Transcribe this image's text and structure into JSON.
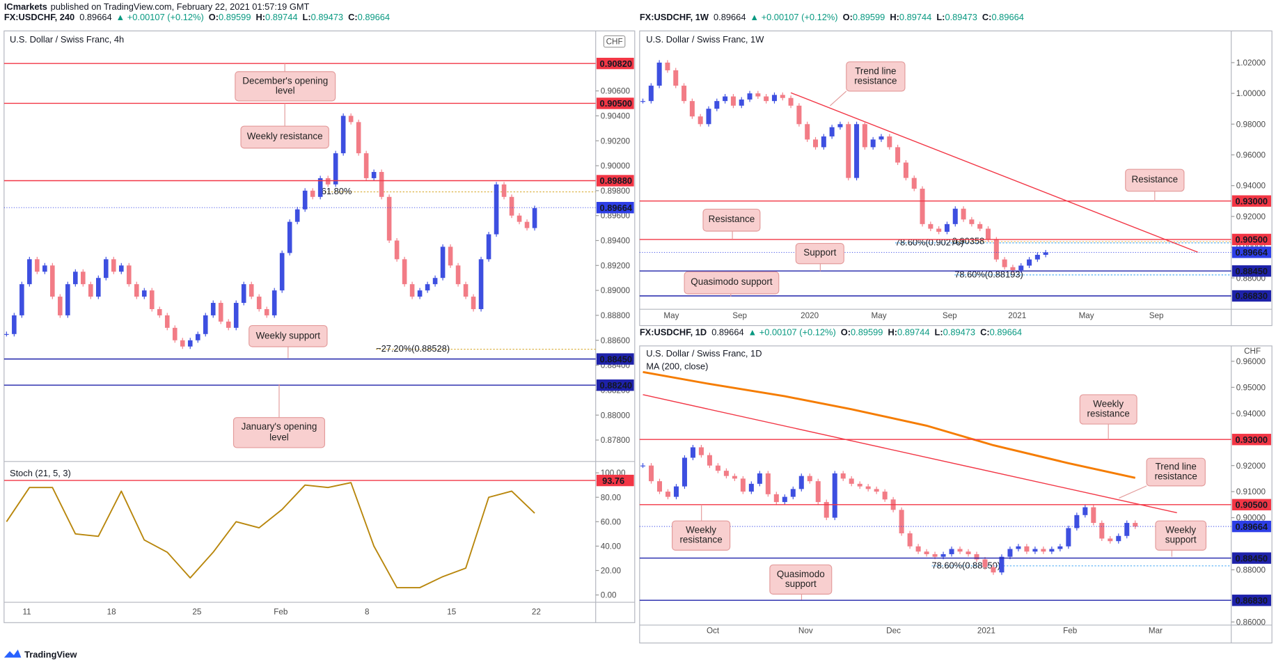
{
  "header": {
    "publisher": "ICmarkets",
    "text": "published on TradingView.com, February 22, 2021 01:57:19 GMT"
  },
  "panels": [
    {
      "symbol_line": {
        "symbol": "FX:USDCHF, 240",
        "last": "0.89664",
        "change": "▲ +0.00107 (+0.12%)",
        "ohlc": [
          {
            "key": "O:",
            "value": "0.89599"
          },
          {
            "key": "H:",
            "value": "0.89744"
          },
          {
            "key": "L:",
            "value": "0.89473"
          },
          {
            "key": "C:",
            "value": "0.89664"
          }
        ]
      },
      "title": "U.S. Dollar / Swiss Franc, 4h",
      "currency": "CHF",
      "ylim": [
        0.87628,
        0.91081
      ],
      "yticks": [
        {
          "value": 0.906,
          "label": "0.90600"
        },
        {
          "value": 0.904,
          "label": "0.90400"
        },
        {
          "value": 0.902,
          "label": "0.90200"
        },
        {
          "value": 0.9,
          "label": "0.90000"
        },
        {
          "value": 0.898,
          "label": "0.89800"
        },
        {
          "value": 0.896,
          "label": "0.89600"
        },
        {
          "value": 0.894,
          "label": "0.89400"
        },
        {
          "value": 0.892,
          "label": "0.89200"
        },
        {
          "value": 0.89,
          "label": "0.89000"
        },
        {
          "value": 0.888,
          "label": "0.88800"
        },
        {
          "value": 0.886,
          "label": "0.88600"
        },
        {
          "value": 0.884,
          "label": "0.88400"
        },
        {
          "value": 0.882,
          "label": "0.88200"
        },
        {
          "value": 0.88,
          "label": "0.88000"
        },
        {
          "value": 0.878,
          "label": "0.87800"
        }
      ],
      "time_labels": [
        "11",
        "18",
        "25",
        "Feb",
        "8",
        "15",
        "22"
      ],
      "candles": [
        0.8865,
        0.888,
        0.8905,
        0.8925,
        0.8915,
        0.892,
        0.8895,
        0.888,
        0.8905,
        0.8915,
        0.8905,
        0.8895,
        0.891,
        0.8925,
        0.8915,
        0.892,
        0.8905,
        0.8895,
        0.89,
        0.8885,
        0.888,
        0.887,
        0.886,
        0.8855,
        0.886,
        0.8865,
        0.888,
        0.889,
        0.8875,
        0.887,
        0.889,
        0.8905,
        0.8895,
        0.8885,
        0.888,
        0.89,
        0.893,
        0.8955,
        0.8965,
        0.898,
        0.8975,
        0.899,
        0.8985,
        0.901,
        0.904,
        0.9035,
        0.901,
        0.899,
        0.8995,
        0.8975,
        0.894,
        0.8925,
        0.8905,
        0.8895,
        0.89,
        0.8905,
        0.891,
        0.8935,
        0.892,
        0.8905,
        0.8895,
        0.8885,
        0.8925,
        0.8945,
        0.8985,
        0.8975,
        0.896,
        0.8955,
        0.895,
        0.8966
      ],
      "levels": [
        {
          "value": 0.9082,
          "label": "0.90820",
          "color": "#f23645",
          "line": "solid"
        },
        {
          "value": 0.905,
          "label": "0.90500",
          "color": "#f23645",
          "line": "solid"
        },
        {
          "value": 0.8988,
          "label": "0.89880",
          "color": "#f23645",
          "line": "solid"
        },
        {
          "value": 0.89664,
          "label": "0.89664",
          "color": "#2d3ee6",
          "line": "dotted"
        },
        {
          "value": 0.8845,
          "label": "0.88450",
          "color": "#1e22aa",
          "line": "solid"
        },
        {
          "value": 0.8824,
          "label": "0.88240",
          "color": "#1e22aa",
          "line": "solid"
        }
      ],
      "fibs": [
        {
          "value": 0.8979,
          "label": "61.80%",
          "color": "#d4a017"
        },
        {
          "value": 0.88528,
          "label": "−27.20%(0.88528)",
          "color": "#d4a017"
        }
      ],
      "annotations": [
        "December's opening level",
        "Weekly resistance",
        "Weekly support",
        "January's opening level"
      ],
      "stoch": {
        "name": "Stoch (21, 5, 3)",
        "color": "#b8860b",
        "ylim": [
          -6,
          109.3
        ],
        "yticks": [
          {
            "value": 100,
            "label": "100.00"
          },
          {
            "value": 80,
            "label": "80.00"
          },
          {
            "value": 60,
            "label": "60.00"
          },
          {
            "value": 40,
            "label": "40.00"
          },
          {
            "value": 20,
            "label": "20.00"
          },
          {
            "value": 0,
            "label": "0.00"
          }
        ],
        "values": [
          60,
          88,
          88,
          50,
          48,
          85,
          45,
          35,
          14,
          35,
          60,
          55,
          70,
          90,
          88,
          92,
          40,
          6,
          6,
          15,
          22,
          80,
          85,
          67
        ],
        "level": {
          "value": 93.76,
          "label": "93.76",
          "color": "#f23645"
        }
      }
    },
    {
      "symbol_line": {
        "symbol": "FX:USDCHF, 1W",
        "last": "0.89664",
        "change": "▲ +0.00107 (+0.12%)",
        "ohlc": [
          {
            "key": "O:",
            "value": "0.89599"
          },
          {
            "key": "H:",
            "value": "0.89744"
          },
          {
            "key": "L:",
            "value": "0.89473"
          },
          {
            "key": "C:",
            "value": "0.89664"
          }
        ]
      },
      "title": "U.S. Dollar / Swiss Franc, 1W",
      "ylim": [
        0.8596,
        1.0406
      ],
      "yticks": [
        {
          "value": 1.02,
          "label": "1.02000"
        },
        {
          "value": 1,
          "label": "1.00000"
        },
        {
          "value": 0.98,
          "label": "0.98000"
        },
        {
          "value": 0.96,
          "label": "0.96000"
        },
        {
          "value": 0.94,
          "label": "0.94000"
        },
        {
          "value": 0.92,
          "label": "0.92000"
        },
        {
          "value": 0.9,
          "label": "0.90000"
        },
        {
          "value": 0.88,
          "label": "0.88000"
        }
      ],
      "time_labels": [
        "May",
        "Sep",
        "2020",
        "May",
        "Sep",
        "2021",
        "May",
        "Sep"
      ],
      "candles": [
        0.995,
        1.005,
        1.02,
        1.015,
        1.005,
        0.995,
        0.985,
        0.98,
        0.99,
        0.995,
        0.998,
        0.992,
        0.996,
        1,
        0.998,
        0.995,
        0.999,
        0.997,
        0.992,
        0.98,
        0.97,
        0.965,
        0.972,
        0.978,
        0.98,
        0.945,
        0.98,
        0.965,
        0.97,
        0.972,
        0.965,
        0.955,
        0.945,
        0.938,
        0.915,
        0.912,
        0.91,
        0.915,
        0.925,
        0.918,
        0.915,
        0.912,
        0.905,
        0.892,
        0.887,
        0.885,
        0.888,
        0.892,
        0.895,
        0.8966
      ],
      "levels": [
        {
          "value": 0.93,
          "label": "0.93000",
          "color": "#f23645",
          "line": "solid"
        },
        {
          "value": 0.905,
          "label": "0.90500",
          "color": "#f23645",
          "line": "solid"
        },
        {
          "value": 0.89664,
          "label": "0.89664",
          "color": "#2d3ee6",
          "line": "dotted"
        },
        {
          "value": 0.8845,
          "label": "0.88450",
          "color": "#1e22aa",
          "line": "solid"
        },
        {
          "value": 0.8683,
          "label": "0.86830",
          "color": "#1e22aa",
          "line": "solid"
        }
      ],
      "fibs": [
        {
          "value": 0.90276,
          "label": "78.60%(0.90276)",
          "color": "#2196f3"
        },
        {
          "value": 0.90358,
          "label": "0.90358",
          "color": "#e0a020"
        },
        {
          "value": 0.88193,
          "label": "78.60%(0.88193)",
          "color": "#2196f3"
        }
      ],
      "trend_lines": [
        {
          "x": [
            18,
            67.5
          ],
          "values": [
            1.0004,
            0.8967
          ],
          "color": "#f23645"
        }
      ],
      "annotations": [
        "Trend line resistance",
        "Resistance",
        "Resistance",
        "Support",
        "Quasimodo support"
      ]
    },
    {
      "symbol_line": {
        "symbol": "FX:USDCHF, 1D",
        "last": "0.89664",
        "change": "▲ +0.00107 (+0.12%)",
        "ohlc": [
          {
            "key": "O:",
            "value": "0.89599"
          },
          {
            "key": "H:",
            "value": "0.89744"
          },
          {
            "key": "L:",
            "value": "0.89473"
          },
          {
            "key": "C:",
            "value": "0.89664"
          }
        ]
      },
      "title": "U.S. Dollar / Swiss Franc, 1D",
      "currency": "CHF",
      "ylim": [
        0.8588,
        0.9659
      ],
      "yticks": [
        {
          "value": 0.96,
          "label": "0.96000"
        },
        {
          "value": 0.95,
          "label": "0.95000"
        },
        {
          "value": 0.94,
          "label": "0.94000"
        },
        {
          "value": 0.92,
          "label": "0.92000"
        },
        {
          "value": 0.91,
          "label": "0.91000"
        },
        {
          "value": 0.9,
          "label": "0.90000"
        },
        {
          "value": 0.88,
          "label": "0.88000"
        },
        {
          "value": 0.86,
          "label": "0.86000"
        }
      ],
      "time_labels": [
        "Oct",
        "Nov",
        "Dec",
        "2021",
        "Feb",
        "Mar"
      ],
      "candles": [
        0.92,
        0.914,
        0.91,
        0.908,
        0.912,
        0.923,
        0.927,
        0.924,
        0.92,
        0.918,
        0.916,
        0.915,
        0.91,
        0.913,
        0.917,
        0.909,
        0.906,
        0.908,
        0.911,
        0.916,
        0.914,
        0.906,
        0.9,
        0.917,
        0.915,
        0.913,
        0.912,
        0.911,
        0.91,
        0.907,
        0.903,
        0.894,
        0.889,
        0.887,
        0.886,
        0.885,
        0.886,
        0.888,
        0.887,
        0.886,
        0.884,
        0.881,
        0.879,
        0.885,
        0.888,
        0.889,
        0.887,
        0.888,
        0.887,
        0.888,
        0.889,
        0.896,
        0.901,
        0.904,
        0.898,
        0.892,
        0.891,
        0.893,
        0.898,
        0.8966
      ],
      "levels": [
        {
          "value": 0.93,
          "label": "0.93000",
          "color": "#f23645",
          "line": "solid"
        },
        {
          "value": 0.905,
          "label": "0.90500",
          "color": "#f23645",
          "line": "solid"
        },
        {
          "value": 0.89664,
          "label": "0.89664",
          "color": "#2d3ee6",
          "line": "dotted"
        },
        {
          "value": 0.8845,
          "label": "0.88450",
          "color": "#1e22aa",
          "line": "solid"
        },
        {
          "value": 0.8683,
          "label": "0.86830",
          "color": "#1e22aa",
          "line": "solid"
        }
      ],
      "fibs": [
        {
          "value": 0.8815,
          "label": "78.60%(0.88150)",
          "color": "#2196f3"
        }
      ],
      "trend_lines": [
        {
          "x": [
            0,
            64
          ],
          "values": [
            0.9472,
            0.9019
          ],
          "color": "#f23645"
        }
      ],
      "ma": {
        "name": "MA (200, close)",
        "color": "#f57c00",
        "x": [
          0,
          8,
          17,
          25,
          34,
          42,
          51,
          59
        ],
        "values": [
          0.9559,
          0.9513,
          0.9466,
          0.9416,
          0.9353,
          0.9278,
          0.9209,
          0.9153
        ]
      },
      "annotations": [
        "Weekly resistance",
        "Trend line resistance",
        "Weekly resistance",
        "Weekly support",
        "Quasimodo support"
      ]
    }
  ],
  "footer": {
    "brand": "TradingView"
  }
}
